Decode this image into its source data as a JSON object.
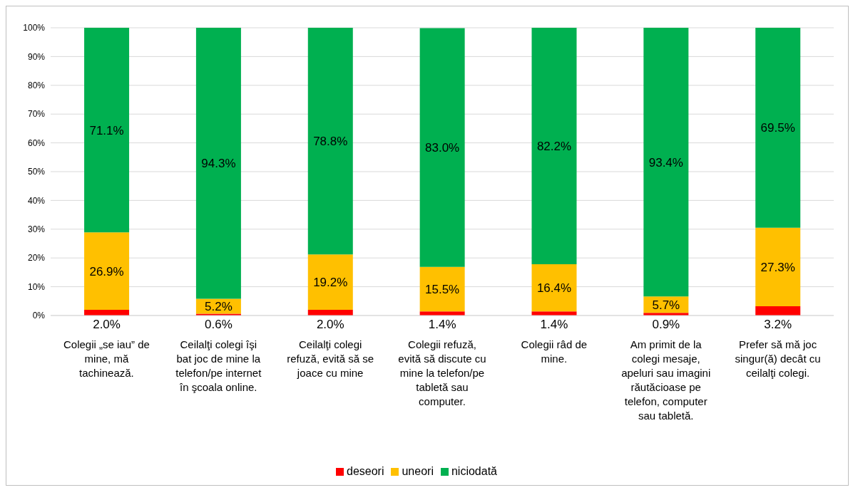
{
  "chart_data": {
    "type": "bar",
    "stacked": true,
    "categories": [
      "Colegii „se iau” de mine, mă tachinează.",
      "Ceilalţi colegi îşi bat joc de mine la telefon/pe internet în şcoala online.",
      "Ceilalţi colegi refuză, evită să se joace cu mine",
      "Colegii refuză, evită să discute cu mine la telefon/pe tabletă sau computer.",
      "Colegii râd de mine.",
      "Am primit de la colegi mesaje, apeluri sau imagini răutăcioase pe telefon, computer sau tabletă.",
      "Prefer să mă joc singur(ă) decât cu ceilalţi colegi."
    ],
    "series": [
      {
        "name": "deseori",
        "color": "#ff0000",
        "values": [
          2.0,
          0.6,
          2.0,
          1.4,
          1.4,
          0.9,
          3.2
        ],
        "value_labels": [
          "2.0%",
          "0.6%",
          "2.0%",
          "1.4%",
          "1.4%",
          "0.9%",
          "3.2%"
        ]
      },
      {
        "name": "uneori",
        "color": "#ffc000",
        "values": [
          26.9,
          5.2,
          19.2,
          15.5,
          16.4,
          5.7,
          27.3
        ],
        "value_labels": [
          "26.9%",
          "5.2%",
          "19.2%",
          "15.5%",
          "16.4%",
          "5.7%",
          "27.3%"
        ]
      },
      {
        "name": "niciodată",
        "color": "#00b050",
        "values": [
          71.1,
          94.3,
          78.8,
          83.0,
          82.2,
          93.4,
          69.5
        ],
        "value_labels": [
          "71.1%",
          "94.3%",
          "78.8%",
          "83.0%",
          "82.2%",
          "93.4%",
          "69.5%"
        ]
      }
    ],
    "ylim": [
      0,
      100
    ],
    "yticks": [
      {
        "value": 0,
        "label": "0%"
      },
      {
        "value": 10,
        "label": "10%"
      },
      {
        "value": 20,
        "label": "20%"
      },
      {
        "value": 30,
        "label": "30%"
      },
      {
        "value": 40,
        "label": "40%"
      },
      {
        "value": 50,
        "label": "50%"
      },
      {
        "value": 60,
        "label": "60%"
      },
      {
        "value": 70,
        "label": "70%"
      },
      {
        "value": 80,
        "label": "80%"
      },
      {
        "value": 90,
        "label": "90%"
      },
      {
        "value": 100,
        "label": "100%"
      }
    ],
    "grid": "y",
    "legend": "bottom"
  }
}
